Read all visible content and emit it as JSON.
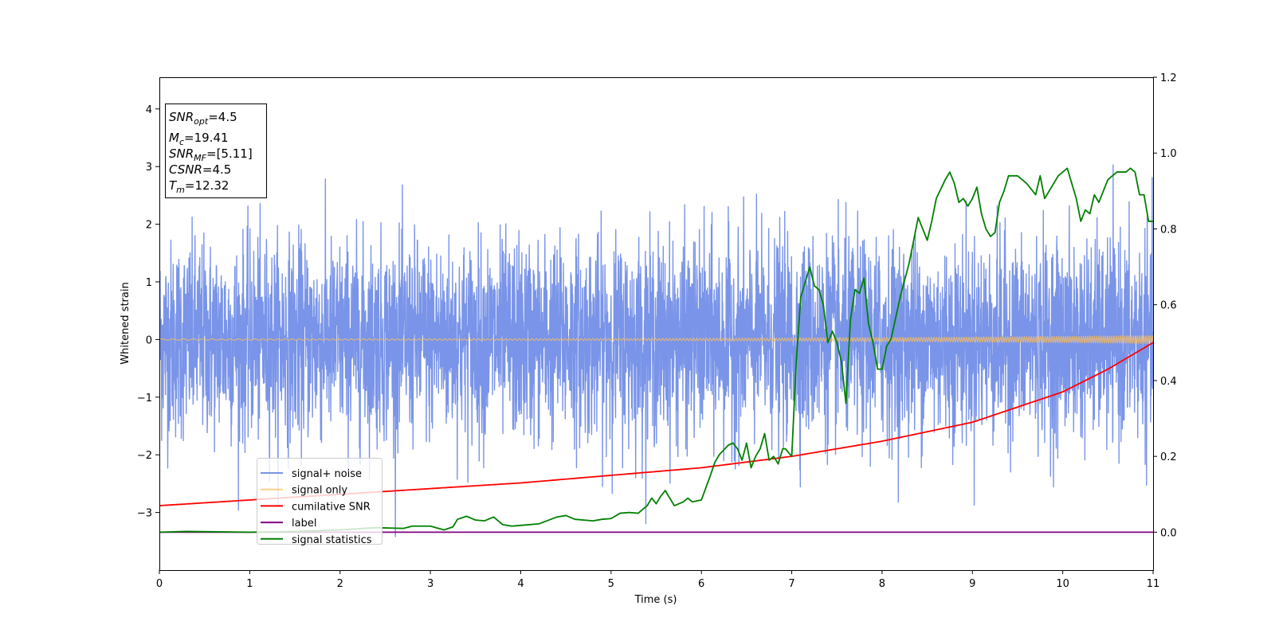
{
  "chart_data": {
    "type": "line",
    "title": "",
    "xlabel": "Time (s)",
    "ylabel": "Whitened strain",
    "xlim": [
      0,
      11
    ],
    "ylim_left": [
      -4,
      4.55
    ],
    "ylim_right": [
      -0.1,
      1.2
    ],
    "x_ticks": [
      "0",
      "1",
      "2",
      "3",
      "4",
      "5",
      "6",
      "7",
      "8",
      "9",
      "10",
      "11"
    ],
    "y_ticks_left": [
      "−3",
      "−2",
      "−1",
      "0",
      "1",
      "2",
      "3",
      "4"
    ],
    "y_ticks_right": [
      "0.0",
      "0.2",
      "0.4",
      "0.6",
      "0.8",
      "1.0",
      "1.2"
    ],
    "grid": false,
    "legend_position": "lower-left",
    "series": [
      {
        "name": "signal+ noise",
        "axis": "left",
        "color": "#6a88e6",
        "style": "noise",
        "amplitude_sigma": 0.85,
        "x_range": [
          0,
          11
        ]
      },
      {
        "name": "signal only",
        "axis": "left",
        "color": "#ffbf5e",
        "style": "chirp",
        "amplitude_start": 0.012,
        "amplitude_end": 0.07
      },
      {
        "name": "cumilative SNR",
        "axis": "right",
        "color": "#ff0000",
        "x": [
          0,
          1,
          2,
          3,
          4,
          5,
          6,
          7,
          8,
          9,
          10,
          10.5,
          11
        ],
        "y": [
          0.07,
          0.085,
          0.1,
          0.115,
          0.13,
          0.15,
          0.17,
          0.2,
          0.24,
          0.29,
          0.37,
          0.43,
          0.5
        ]
      },
      {
        "name": "label",
        "axis": "right",
        "color": "#800080",
        "x": [
          0,
          11
        ],
        "y": [
          0,
          0
        ]
      },
      {
        "name": "signal statistics",
        "axis": "right",
        "color": "#008000",
        "x": [
          0,
          0.3,
          1.0,
          1.5,
          2.0,
          2.4,
          2.7,
          2.8,
          3.0,
          3.15,
          3.25,
          3.3,
          3.4,
          3.5,
          3.6,
          3.7,
          3.8,
          3.9,
          4.0,
          4.2,
          4.4,
          4.5,
          4.6,
          4.8,
          4.9,
          5.0,
          5.1,
          5.2,
          5.3,
          5.4,
          5.45,
          5.5,
          5.55,
          5.6,
          5.65,
          5.7,
          5.8,
          5.85,
          5.9,
          6.0,
          6.1,
          6.15,
          6.2,
          6.3,
          6.35,
          6.4,
          6.45,
          6.5,
          6.55,
          6.6,
          6.65,
          6.7,
          6.75,
          6.8,
          6.85,
          6.9,
          6.93,
          7.0,
          7.05,
          7.1,
          7.15,
          7.2,
          7.25,
          7.3,
          7.35,
          7.4,
          7.45,
          7.5,
          7.55,
          7.6,
          7.65,
          7.7,
          7.75,
          7.8,
          7.85,
          7.9,
          7.95,
          8.0,
          8.05,
          8.1,
          8.2,
          8.3,
          8.4,
          8.45,
          8.5,
          8.55,
          8.6,
          8.7,
          8.75,
          8.8,
          8.85,
          8.9,
          8.95,
          9.0,
          9.05,
          9.1,
          9.15,
          9.2,
          9.25,
          9.3,
          9.35,
          9.4,
          9.5,
          9.6,
          9.7,
          9.75,
          9.8,
          9.9,
          9.95,
          10.0,
          10.05,
          10.1,
          10.15,
          10.2,
          10.25,
          10.3,
          10.35,
          10.4,
          10.5,
          10.6,
          10.7,
          10.75,
          10.8,
          10.85,
          10.9,
          10.95,
          11.0
        ],
        "y": [
          0.0,
          0.002,
          0.0,
          0.002,
          0.006,
          0.012,
          0.01,
          0.016,
          0.016,
          0.006,
          0.014,
          0.034,
          0.042,
          0.032,
          0.03,
          0.04,
          0.02,
          0.016,
          0.018,
          0.022,
          0.04,
          0.044,
          0.034,
          0.03,
          0.034,
          0.036,
          0.05,
          0.052,
          0.05,
          0.07,
          0.09,
          0.075,
          0.095,
          0.11,
          0.09,
          0.07,
          0.08,
          0.09,
          0.08,
          0.085,
          0.15,
          0.185,
          0.205,
          0.23,
          0.235,
          0.22,
          0.19,
          0.235,
          0.17,
          0.2,
          0.22,
          0.26,
          0.19,
          0.2,
          0.18,
          0.22,
          0.22,
          0.2,
          0.45,
          0.62,
          0.66,
          0.7,
          0.65,
          0.64,
          0.6,
          0.5,
          0.53,
          0.5,
          0.45,
          0.34,
          0.56,
          0.64,
          0.63,
          0.67,
          0.55,
          0.5,
          0.43,
          0.43,
          0.49,
          0.51,
          0.62,
          0.71,
          0.83,
          0.8,
          0.77,
          0.82,
          0.88,
          0.93,
          0.95,
          0.92,
          0.87,
          0.88,
          0.86,
          0.88,
          0.91,
          0.84,
          0.8,
          0.78,
          0.79,
          0.87,
          0.9,
          0.94,
          0.94,
          0.92,
          0.89,
          0.94,
          0.88,
          0.92,
          0.94,
          0.95,
          0.96,
          0.92,
          0.88,
          0.82,
          0.85,
          0.84,
          0.89,
          0.87,
          0.93,
          0.95,
          0.95,
          0.96,
          0.95,
          0.89,
          0.89,
          0.82,
          0.82
        ]
      }
    ],
    "annotation": {
      "snr_opt": {
        "base": "SNR",
        "sub": "opt",
        "value": "=4.5"
      },
      "mc": {
        "base": "M",
        "sub": "c",
        "value": "=19.41"
      },
      "snr_mf": {
        "base": "SNR",
        "sub": "MF",
        "value": "=[5.11]"
      },
      "csnr": {
        "base": "CSNR",
        "sub": "",
        "value": "=4.5"
      },
      "tm": {
        "base": "T",
        "sub": "m",
        "value": "=12.32"
      }
    }
  }
}
